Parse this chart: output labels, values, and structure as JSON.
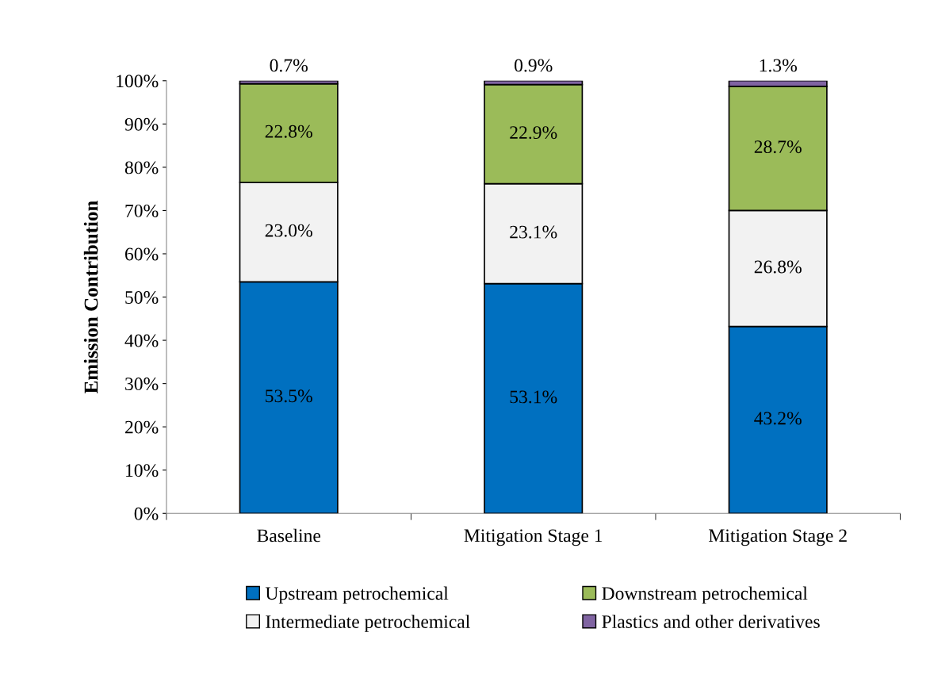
{
  "chart_data": {
    "type": "bar",
    "stacked": true,
    "ylabel": "Emission Contribution",
    "categories": [
      "Baseline",
      "Mitigation Stage 1",
      "Mitigation Stage 2"
    ],
    "series": [
      {
        "name": "Upstream petrochemical",
        "color": "#0070c0",
        "values": [
          53.5,
          53.1,
          43.2
        ],
        "value_labels": [
          "53.5%",
          "53.1%",
          "43.2%"
        ]
      },
      {
        "name": "Intermediate petrochemical",
        "color": "#f2f2f2",
        "values": [
          23.0,
          23.1,
          26.8
        ],
        "value_labels": [
          "23.0%",
          "23.1%",
          "26.8%"
        ]
      },
      {
        "name": "Downstream petrochemical",
        "color": "#9bbb59",
        "values": [
          22.8,
          22.9,
          28.7
        ],
        "value_labels": [
          "22.8%",
          "22.9%",
          "28.7%"
        ]
      },
      {
        "name": "Plastics and other derivatives",
        "color": "#8064a2",
        "values": [
          0.7,
          0.9,
          1.3
        ],
        "value_labels": [
          "0.7%",
          "0.9%",
          "1.3%"
        ]
      }
    ],
    "ylim": [
      0,
      100
    ],
    "yticks": [
      {
        "value": 0,
        "label": "0%"
      },
      {
        "value": 10,
        "label": "10%"
      },
      {
        "value": 20,
        "label": "20%"
      },
      {
        "value": 30,
        "label": "30%"
      },
      {
        "value": 40,
        "label": "40%"
      },
      {
        "value": 50,
        "label": "50%"
      },
      {
        "value": 60,
        "label": "60%"
      },
      {
        "value": 70,
        "label": "70%"
      },
      {
        "value": 80,
        "label": "80%"
      },
      {
        "value": 90,
        "label": "90%"
      },
      {
        "value": 100,
        "label": "100%"
      }
    ],
    "grid": false,
    "legend": "bottom"
  }
}
